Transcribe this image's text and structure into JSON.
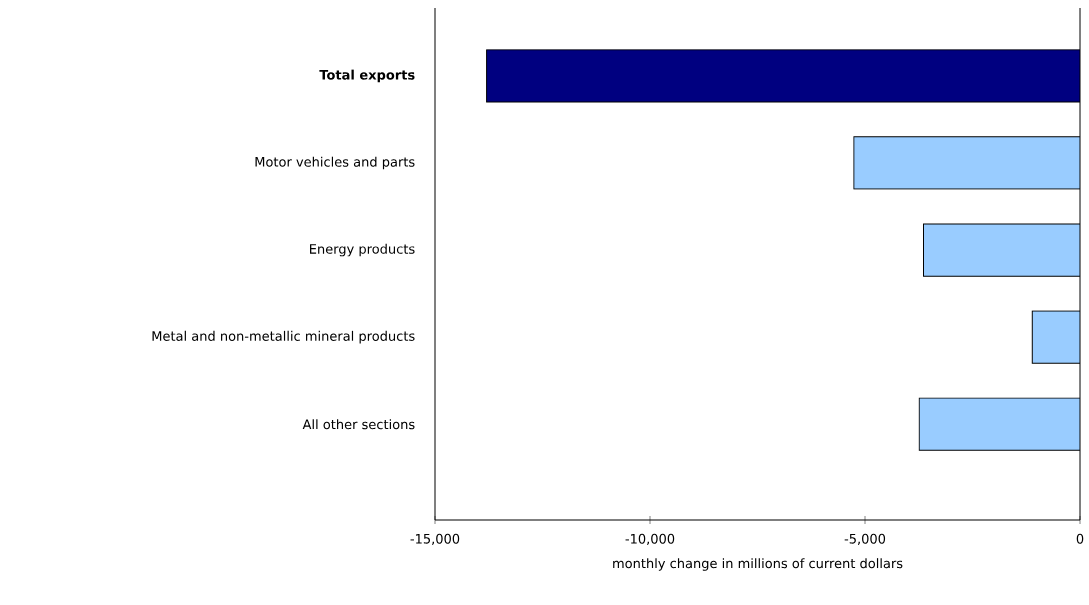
{
  "chart_data": {
    "type": "bar",
    "orientation": "horizontal",
    "categories": [
      "**Total exports**",
      "Motor vehicles and parts",
      "Energy products",
      "Metal and non-metallic mineral products",
      "All other sections"
    ],
    "values": [
      -13800,
      -5260,
      -3640,
      -1110,
      -3740
    ],
    "colors": [
      "#000080",
      "#99ccff",
      "#99ccff",
      "#99ccff",
      "#99ccff"
    ],
    "xlim": [
      -15000,
      0
    ],
    "xticks": [
      {
        "value": -15000,
        "label": "-15,000"
      },
      {
        "value": -10000,
        "label": "-10,000"
      },
      {
        "value": -5000,
        "label": "-5,000"
      },
      {
        "value": 0,
        "label": "0"
      }
    ],
    "xlabel": "monthly change in millions of current dollars"
  }
}
